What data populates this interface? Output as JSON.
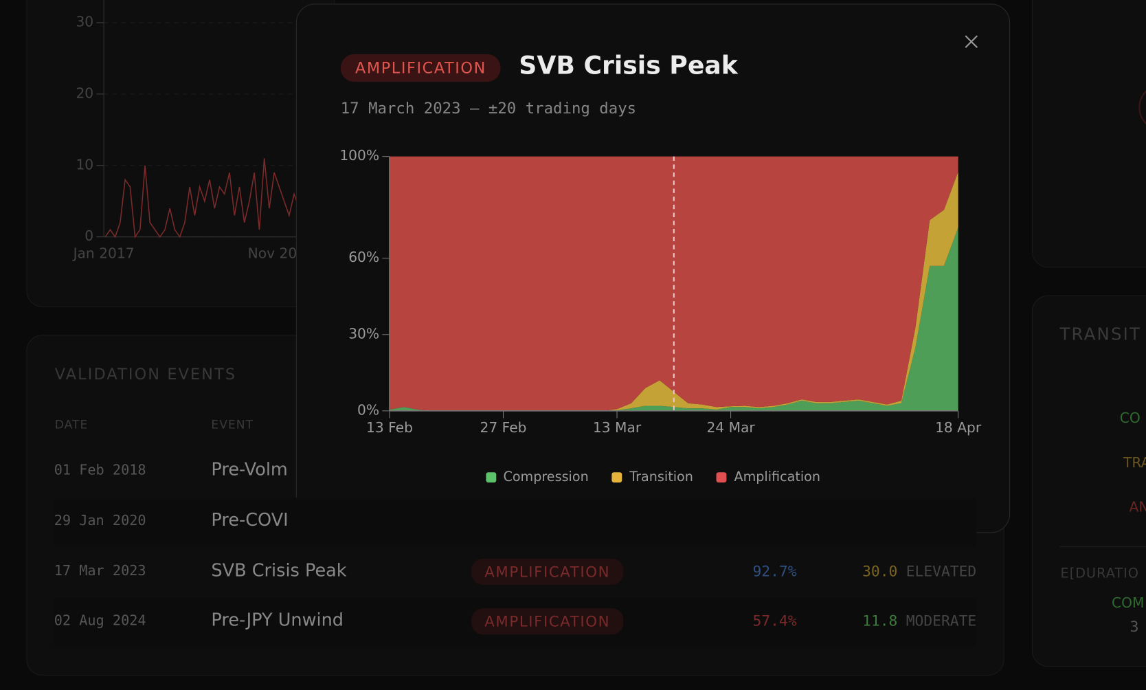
{
  "background": {
    "chart": {
      "type": "line",
      "color": "#7a2a2a",
      "ylim": [
        0,
        30
      ],
      "yticks": [
        0,
        10,
        20,
        30
      ],
      "x_labels": [
        "Jan 2017",
        "Nov 20"
      ],
      "values": [
        0,
        1,
        0,
        2,
        8,
        7,
        0,
        1,
        10,
        2,
        1,
        0,
        1,
        4,
        1,
        0,
        2,
        7,
        3,
        7,
        5,
        8,
        4,
        7,
        6,
        9,
        3,
        7,
        2,
        5,
        9,
        1,
        11,
        4,
        9,
        7,
        5,
        3,
        6,
        4
      ]
    },
    "table": {
      "title": "VALIDATION EVENTS",
      "headers": [
        "DATE",
        "EVENT"
      ],
      "rows": [
        [
          "01 Feb 2018",
          "Pre-Volm"
        ],
        [
          "29 Jan 2020",
          "Pre-COVI"
        ],
        [
          "17 Mar 2023",
          "SVB Crisis Peak",
          "AMPLIFICATION",
          "92.7%",
          "30.0",
          "ELEVATED"
        ],
        [
          "02 Aug 2024",
          "Pre-JPY Unwind",
          "AMPLIFICATION",
          "57.4%",
          "11.8",
          "MODERATE"
        ]
      ]
    },
    "side": {
      "title": "TRANSIT",
      "labels": [
        "CO",
        "TRA",
        "AN"
      ],
      "footer_title": "E[DURATIO",
      "footer_label": "COM",
      "footer_value": "3"
    }
  },
  "modal": {
    "badge": "AMPLIFICATION",
    "title": "SVB Crisis Peak",
    "subtitle": "17 March 2023 — ±20 trading days",
    "chart_data": {
      "type": "stacked_area",
      "categories": [
        "13 Feb",
        null,
        null,
        null,
        null,
        null,
        null,
        null,
        "27 Feb",
        null,
        null,
        null,
        null,
        null,
        null,
        null,
        "13 Mar",
        null,
        null,
        null,
        null,
        null,
        null,
        null,
        "24 Mar",
        null,
        null,
        null,
        null,
        null,
        null,
        null,
        null,
        null,
        null,
        null,
        null,
        null,
        null,
        null,
        "18 Apr"
      ],
      "marker_index": 20,
      "ylim": [
        0,
        100
      ],
      "yticks": [
        {
          "value": 0,
          "label": "0%"
        },
        {
          "value": 30,
          "label": "30%"
        },
        {
          "value": 60,
          "label": "60%"
        },
        {
          "value": 100,
          "label": "100%"
        }
      ],
      "series": [
        {
          "name": "Compression",
          "color": "#4e9e58",
          "legend_color": "#5cc26a",
          "values": [
            0.5,
            1.5,
            0.5,
            0,
            0,
            0,
            0,
            0,
            0,
            0,
            0,
            0,
            0,
            0,
            0,
            0,
            0.2,
            1,
            2,
            2,
            1.5,
            1,
            1,
            0.5,
            1.5,
            1.5,
            1,
            1.5,
            2.5,
            4,
            3,
            3,
            3.5,
            4,
            3,
            2,
            3,
            25,
            57,
            57,
            72
          ]
        },
        {
          "name": "Transition",
          "color": "#c4a235",
          "legend_color": "#e6b43c",
          "values": [
            0,
            0,
            0,
            0,
            0,
            0,
            0,
            0,
            0,
            0,
            0,
            0,
            0,
            0,
            0,
            0,
            0.5,
            2,
            7,
            10,
            6,
            2,
            1.5,
            1,
            0.3,
            0.5,
            0.5,
            0.5,
            0.5,
            0.5,
            0.5,
            0.5,
            0.5,
            0.5,
            0.5,
            0.5,
            1,
            8,
            18,
            22,
            22
          ]
        },
        {
          "name": "Amplification",
          "color": "#b84440",
          "legend_color": "#e05050",
          "values": [
            99.5,
            98.5,
            99.5,
            100,
            100,
            100,
            100,
            100,
            100,
            100,
            100,
            100,
            100,
            100,
            100,
            100,
            99.3,
            97,
            91,
            88,
            92.5,
            97,
            97.5,
            98.5,
            98.2,
            98,
            98.5,
            98,
            97,
            95.5,
            96.5,
            96.5,
            96,
            95.5,
            96.5,
            97.5,
            96,
            67,
            25,
            21,
            6
          ]
        }
      ]
    }
  }
}
